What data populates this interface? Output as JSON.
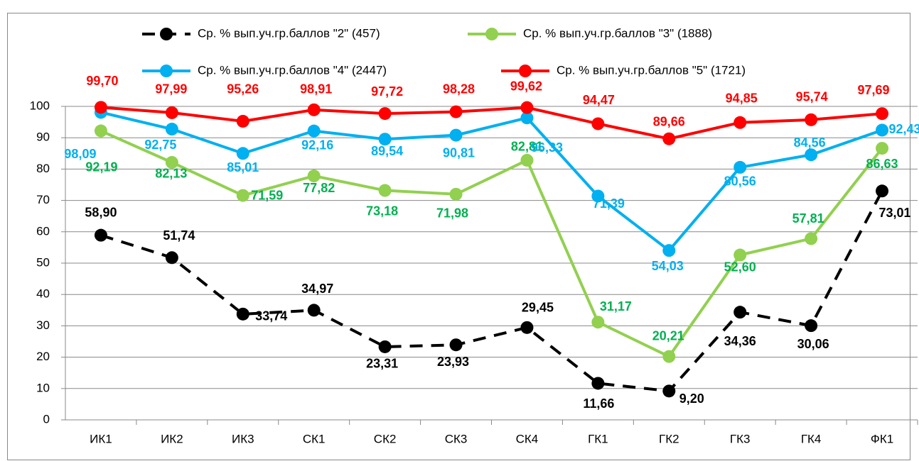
{
  "chart_data": {
    "type": "line",
    "categories": [
      "ИК1",
      "ИК2",
      "ИК3",
      "СК1",
      "СК2",
      "СК3",
      "СК4",
      "ГК1",
      "ГК2",
      "ГК3",
      "ГК4",
      "ФК1"
    ],
    "ylim": [
      0,
      100
    ],
    "yticks": [
      0,
      10,
      20,
      30,
      40,
      50,
      60,
      70,
      80,
      90,
      100
    ],
    "grid": true,
    "legend": "top",
    "series": [
      {
        "name": "Ср. % вып.уч.гр.баллов \"2\" (457)",
        "color": "#000000",
        "label_color": "#000000",
        "dash": true,
        "values": [
          58.9,
          51.74,
          33.74,
          34.97,
          23.31,
          23.93,
          29.45,
          11.66,
          9.2,
          34.36,
          30.06,
          73.01
        ],
        "value_labels": [
          "58,90",
          "51,74",
          "33,74",
          "34,97",
          "23,31",
          "23,93",
          "29,45",
          "11,66",
          "9,20",
          "34,36",
          "30,06",
          "73,01"
        ]
      },
      {
        "name": "Ср. % вып.уч.гр.баллов \"3\" (1888)",
        "color": "#92d050",
        "label_color": "#00b050",
        "dash": false,
        "values": [
          92.19,
          82.13,
          71.59,
          77.82,
          73.18,
          71.98,
          82.81,
          31.17,
          20.21,
          52.6,
          57.81,
          86.63
        ],
        "value_labels": [
          "92,19",
          "82,13",
          "71,59",
          "77,82",
          "73,18",
          "71,98",
          "82,81",
          "31,17",
          "20,21",
          "52,60",
          "57,81",
          "86,63"
        ]
      },
      {
        "name": "Ср. % вып.уч.гр.баллов \"4\" (2447)",
        "color": "#00b0f0",
        "label_color": "#00b0f0",
        "dash": false,
        "values": [
          98.09,
          92.75,
          85.01,
          92.16,
          89.54,
          90.81,
          96.33,
          71.39,
          54.03,
          80.56,
          84.56,
          92.43
        ],
        "value_labels": [
          "98,09",
          "92,75",
          "85,01",
          "92,16",
          "89,54",
          "90,81",
          "96,33",
          "71,39",
          "54,03",
          "80,56",
          "84,56",
          "92,43"
        ]
      },
      {
        "name": "Ср. % вып.уч.гр.баллов \"5\" (1721)",
        "color": "#ff0000",
        "label_color": "#ff0000",
        "dash": false,
        "values": [
          99.7,
          97.99,
          95.26,
          98.91,
          97.72,
          98.28,
          99.62,
          94.47,
          89.66,
          94.85,
          95.74,
          97.69
        ],
        "value_labels": [
          "99,70",
          "97,99",
          "95,26",
          "98,91",
          "97,72",
          "98,28",
          "99,62",
          "94,47",
          "89,66",
          "94,85",
          "95,74",
          "97,69"
        ]
      }
    ]
  }
}
